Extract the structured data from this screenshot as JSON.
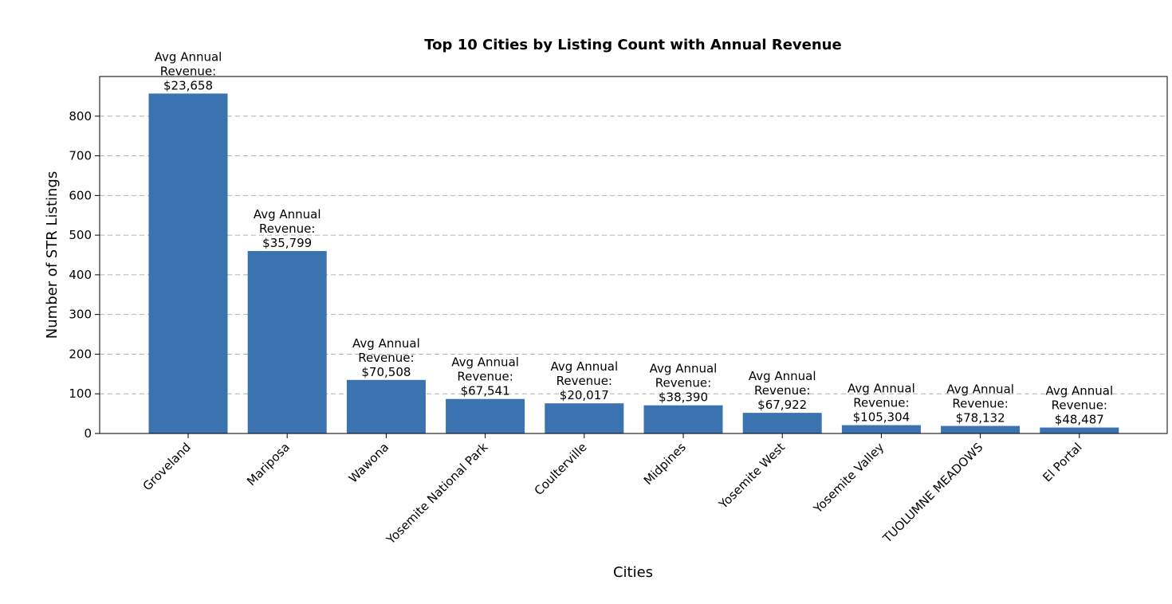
{
  "chart_data": {
    "type": "bar",
    "title": "Top 10 Cities by Listing Count with Annual Revenue",
    "xlabel": "Cities",
    "ylabel": "Number of STR Listings",
    "categories": [
      "Groveland",
      "Mariposa",
      "Wawona",
      "Yosemite National Park",
      "Coulterville",
      "Midpines",
      "Yosemite West",
      "Yosemite Valley",
      "TUOLUMNE MEADOWS",
      "El Portal"
    ],
    "values": [
      857,
      460,
      135,
      87,
      76,
      71,
      52,
      21,
      19,
      15
    ],
    "bar_labels": [
      [
        "Avg Annual",
        "Revenue:",
        "$23,658"
      ],
      [
        "Avg Annual",
        "Revenue:",
        "$35,799"
      ],
      [
        "Avg Annual",
        "Revenue:",
        "$70,508"
      ],
      [
        "Avg Annual",
        "Revenue:",
        "$67,541"
      ],
      [
        "Avg Annual",
        "Revenue:",
        "$20,017"
      ],
      [
        "Avg Annual",
        "Revenue:",
        "$38,390"
      ],
      [
        "Avg Annual",
        "Revenue:",
        "$67,922"
      ],
      [
        "Avg Annual",
        "Revenue:",
        "$105,304"
      ],
      [
        "Avg Annual",
        "Revenue:",
        "$78,132"
      ],
      [
        "Avg Annual",
        "Revenue:",
        "$48,487"
      ]
    ],
    "yticks": [
      0,
      100,
      200,
      300,
      400,
      500,
      600,
      700,
      800
    ],
    "ylim": [
      0,
      900
    ],
    "grid": "y-dashed",
    "bar_color": "#3a73b0"
  }
}
